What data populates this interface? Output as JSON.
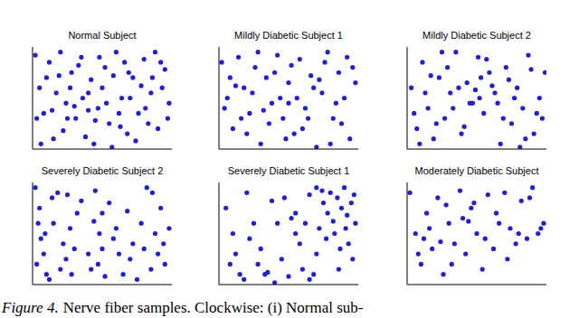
{
  "chart_data": [
    {
      "type": "scatter",
      "title": "Normal Subject",
      "color": "#2020d0",
      "marker": "circle",
      "tick_labels": false,
      "xlim": [
        0,
        1
      ],
      "ylim": [
        0,
        1
      ],
      "x": [
        0.02,
        0.05,
        0.08,
        0.12,
        0.15,
        0.2,
        0.24,
        0.28,
        0.31,
        0.35,
        0.4,
        0.44,
        0.47,
        0.52,
        0.55,
        0.6,
        0.64,
        0.68,
        0.72,
        0.76,
        0.8,
        0.85,
        0.9,
        0.95,
        0.98,
        0.03,
        0.1,
        0.17,
        0.22,
        0.27,
        0.33,
        0.38,
        0.42,
        0.5,
        0.57,
        0.62,
        0.66,
        0.7,
        0.78,
        0.83,
        0.88,
        0.93,
        0.06,
        0.14,
        0.25,
        0.36,
        0.45,
        0.53,
        0.58,
        0.74,
        0.81,
        0.92,
        0.19,
        0.3,
        0.48,
        0.63,
        0.86,
        0.97,
        0.4,
        0.69
      ],
      "values": [
        0.92,
        0.6,
        0.35,
        0.85,
        0.1,
        0.95,
        0.45,
        0.75,
        0.3,
        0.9,
        0.55,
        0.05,
        0.4,
        0.8,
        0.25,
        0.95,
        0.5,
        0.15,
        0.7,
        0.35,
        0.88,
        0.55,
        0.2,
        0.78,
        0.45,
        0.3,
        0.7,
        0.55,
        0.18,
        0.6,
        0.82,
        0.12,
        0.68,
        0.6,
        0.02,
        0.35,
        0.85,
        0.5,
        0.62,
        0.25,
        0.95,
        0.6,
        0.05,
        0.38,
        0.3,
        0.5,
        0.28,
        0.45,
        0.72,
        0.08,
        0.4,
        0.85,
        0.72,
        0.42,
        0.9,
        0.22,
        0.7,
        0.3,
        0.38,
        0.75
      ]
    },
    {
      "type": "scatter",
      "title": "Mildly Diabetic Subject 1",
      "color": "#2020d0",
      "marker": "circle",
      "tick_labels": false,
      "xlim": [
        0,
        1
      ],
      "ylim": [
        0,
        1
      ],
      "x": [
        0.02,
        0.06,
        0.1,
        0.14,
        0.18,
        0.22,
        0.26,
        0.3,
        0.34,
        0.38,
        0.42,
        0.46,
        0.5,
        0.54,
        0.58,
        0.62,
        0.66,
        0.7,
        0.74,
        0.78,
        0.82,
        0.86,
        0.9,
        0.94,
        0.98,
        0.04,
        0.12,
        0.2,
        0.28,
        0.36,
        0.44,
        0.52,
        0.6,
        0.68,
        0.76,
        0.84,
        0.92,
        0.08,
        0.16,
        0.24,
        0.32,
        0.4,
        0.48,
        0.56,
        0.64,
        0.72,
        0.8,
        0.88,
        0.96,
        0.5
      ],
      "values": [
        0.85,
        0.5,
        0.2,
        0.9,
        0.6,
        0.35,
        0.8,
        0.05,
        0.7,
        0.45,
        0.92,
        0.3,
        0.65,
        0.15,
        0.88,
        0.4,
        0.72,
        0.02,
        0.55,
        0.95,
        0.3,
        0.75,
        0.5,
        0.1,
        0.65,
        0.4,
        0.62,
        0.15,
        0.95,
        0.25,
        0.5,
        0.82,
        0.2,
        0.6,
        0.85,
        0.45,
        0.9,
        0.7,
        0.3,
        0.55,
        0.38,
        0.75,
        0.1,
        0.5,
        0.3,
        0.68,
        0.05,
        0.25,
        0.8,
        0.45
      ]
    },
    {
      "type": "scatter",
      "title": "Mildly Diabetic Subject 2",
      "color": "#2020d0",
      "marker": "circle",
      "tick_labels": false,
      "xlim": [
        0,
        1
      ],
      "ylim": [
        0,
        1
      ],
      "x": [
        0.03,
        0.07,
        0.11,
        0.15,
        0.19,
        0.23,
        0.27,
        0.31,
        0.35,
        0.39,
        0.43,
        0.47,
        0.51,
        0.55,
        0.59,
        0.63,
        0.67,
        0.71,
        0.75,
        0.79,
        0.83,
        0.87,
        0.91,
        0.95,
        0.99,
        0.05,
        0.13,
        0.21,
        0.29,
        0.37,
        0.45,
        0.53,
        0.61,
        0.69,
        0.77,
        0.85,
        0.93,
        0.09,
        0.17,
        0.25,
        0.33,
        0.41,
        0.49,
        0.57,
        0.65,
        0.73,
        0.81,
        0.89,
        0.97,
        0.52
      ],
      "values": [
        0.6,
        0.2,
        0.85,
        0.4,
        0.1,
        0.7,
        0.3,
        0.55,
        0.95,
        0.15,
        0.65,
        0.45,
        0.9,
        0.35,
        0.75,
        0.55,
        0.05,
        0.8,
        0.25,
        0.6,
        0.4,
        0.92,
        0.15,
        0.5,
        0.75,
        0.35,
        0.55,
        0.25,
        0.8,
        0.6,
        0.45,
        0.7,
        0.62,
        0.3,
        0.5,
        0.1,
        0.35,
        0.05,
        0.72,
        0.95,
        0.4,
        0.22,
        0.58,
        0.88,
        0.45,
        0.68,
        0.02,
        0.78,
        0.3,
        0.5
      ]
    },
    {
      "type": "scatter",
      "title": "Severely Diabetic Subject 2",
      "color": "#2020d0",
      "marker": "circle",
      "tick_labels": false,
      "xlim": [
        0,
        1
      ],
      "ylim": [
        0,
        1
      ],
      "x": [
        0.02,
        0.04,
        0.06,
        0.08,
        0.1,
        0.05,
        0.09,
        0.12,
        0.14,
        0.03,
        0.18,
        0.22,
        0.2,
        0.25,
        0.27,
        0.3,
        0.24,
        0.28,
        0.32,
        0.35,
        0.4,
        0.42,
        0.45,
        0.48,
        0.5,
        0.44,
        0.47,
        0.52,
        0.55,
        0.58,
        0.62,
        0.65,
        0.6,
        0.68,
        0.7,
        0.72,
        0.75,
        0.78,
        0.8,
        0.82,
        0.85,
        0.88,
        0.9,
        0.92,
        0.95,
        0.98,
        0.86,
        0.94,
        0.5,
        0.15
      ],
      "values": [
        0.95,
        0.6,
        0.45,
        0.3,
        0.1,
        0.75,
        0.5,
        0.05,
        0.85,
        0.2,
        0.9,
        0.4,
        0.15,
        0.88,
        0.55,
        0.35,
        0.25,
        0.1,
        0.7,
        0.82,
        0.3,
        0.15,
        0.92,
        0.5,
        0.35,
        0.62,
        0.2,
        0.08,
        0.8,
        0.45,
        0.3,
        0.1,
        0.55,
        0.72,
        0.25,
        0.4,
        0.05,
        0.6,
        0.35,
        0.95,
        0.15,
        0.5,
        0.3,
        0.75,
        0.2,
        0.55,
        0.9,
        0.4,
        0.7,
        0.6
      ]
    },
    {
      "type": "scatter",
      "title": "Severely Diabetic Subject 1",
      "color": "#2020d0",
      "marker": "circle",
      "tick_labels": false,
      "xlim": [
        0,
        1
      ],
      "ylim": [
        0,
        1
      ],
      "x": [
        0.05,
        0.1,
        0.15,
        0.2,
        0.25,
        0.08,
        0.18,
        0.3,
        0.35,
        0.38,
        0.4,
        0.42,
        0.45,
        0.5,
        0.55,
        0.6,
        0.65,
        0.7,
        0.72,
        0.75,
        0.78,
        0.8,
        0.82,
        0.85,
        0.88,
        0.9,
        0.92,
        0.95,
        0.98,
        0.77,
        0.83,
        0.87,
        0.93,
        0.96,
        0.7,
        0.65,
        0.58,
        0.52,
        0.47,
        0.33,
        0.28,
        0.22,
        0.12,
        0.62,
        0.68,
        0.74,
        0.86,
        0.91,
        0.97,
        0.55
      ],
      "values": [
        0.75,
        0.5,
        0.1,
        0.9,
        0.6,
        0.2,
        0.05,
        0.35,
        0.12,
        0.82,
        0.02,
        0.6,
        0.25,
        0.08,
        0.7,
        0.15,
        0.88,
        0.95,
        0.55,
        0.8,
        0.7,
        0.9,
        0.62,
        0.85,
        0.75,
        0.95,
        0.68,
        0.8,
        0.6,
        0.45,
        0.5,
        0.35,
        0.4,
        0.25,
        0.3,
        0.05,
        0.4,
        0.65,
        0.85,
        0.1,
        0.2,
        0.45,
        0.3,
        0.6,
        0.1,
        0.92,
        0.15,
        0.55,
        0.88,
        0.5
      ]
    },
    {
      "type": "scatter",
      "title": "Moderately Diabetic Subject",
      "color": "#2020d0",
      "marker": "circle",
      "tick_labels": false,
      "xlim": [
        0,
        1
      ],
      "ylim": [
        0,
        1
      ],
      "x": [
        0.02,
        0.06,
        0.1,
        0.14,
        0.18,
        0.22,
        0.26,
        0.3,
        0.34,
        0.38,
        0.42,
        0.46,
        0.5,
        0.54,
        0.58,
        0.62,
        0.66,
        0.7,
        0.74,
        0.78,
        0.82,
        0.86,
        0.9,
        0.94,
        0.98,
        0.08,
        0.16,
        0.24,
        0.32,
        0.4,
        0.48,
        0.56,
        0.64,
        0.72,
        0.8,
        0.88,
        0.96,
        0.12,
        0.28,
        0.44
      ],
      "values": [
        0.9,
        0.5,
        0.2,
        0.7,
        0.35,
        0.85,
        0.1,
        0.6,
        0.4,
        0.92,
        0.3,
        0.75,
        0.5,
        0.15,
        0.88,
        0.35,
        0.6,
        0.9,
        0.55,
        0.4,
        0.82,
        0.45,
        0.95,
        0.5,
        0.6,
        0.3,
        0.55,
        0.42,
        0.2,
        0.65,
        0.8,
        0.45,
        0.7,
        0.25,
        0.5,
        0.85,
        0.55,
        0.45,
        0.78,
        0.62
      ]
    }
  ],
  "caption": {
    "label": "Figure 4.",
    "text": "Nerve fiber samples. Clockwise: (i) Normal sub-"
  }
}
